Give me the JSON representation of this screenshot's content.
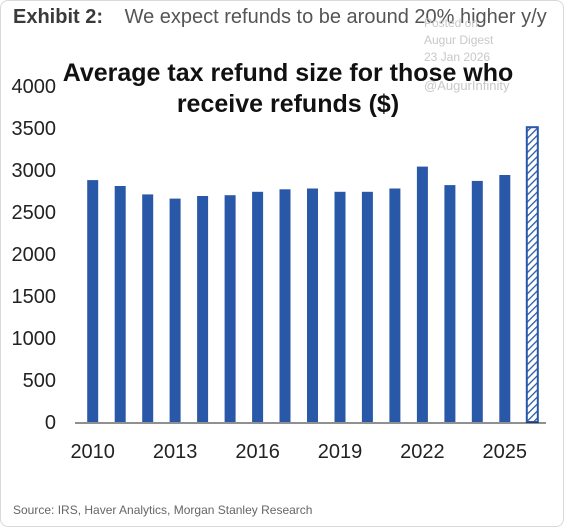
{
  "header": {
    "exhibit": "Exhibit 2:",
    "subtitle": "We expect refunds to be around 20% higher y/y"
  },
  "watermark": {
    "line1": "Posted on",
    "line2": "Augur Digest",
    "line3": "23 Jan 2026",
    "handle": "@AugurInfinity"
  },
  "source": "Source: IRS, Haver Analytics, Morgan Stanley Research",
  "colors": {
    "bar": "#2a58a8",
    "forecast_bar": "hatched",
    "axis": "#222222"
  },
  "chart_data": {
    "type": "bar",
    "title_lines": [
      "Average tax refund size for those who",
      "receive refunds ($)"
    ],
    "categories": [
      "2010",
      "2011",
      "2012",
      "2013",
      "2014",
      "2015",
      "2016",
      "2017",
      "2018",
      "2019",
      "2020",
      "2021",
      "2022",
      "2023",
      "2024",
      "2025",
      "2026"
    ],
    "x_tick_labels": [
      "2010",
      "2013",
      "2016",
      "2019",
      "2022",
      "2025"
    ],
    "values": [
      2880,
      2810,
      2710,
      2660,
      2690,
      2700,
      2740,
      2770,
      2780,
      2740,
      2740,
      2780,
      3040,
      2820,
      2870,
      2940,
      3510
    ],
    "forecast_categories": [
      "2026"
    ],
    "ylim": [
      0,
      4000
    ],
    "y_ticks": [
      0,
      500,
      1000,
      1500,
      2000,
      2500,
      3000,
      3500,
      4000
    ],
    "xlabel": "",
    "ylabel": "",
    "grid": false
  }
}
